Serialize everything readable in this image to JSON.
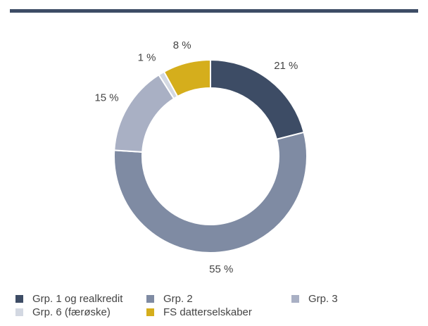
{
  "chart_data": {
    "type": "donut",
    "categories": [
      "Grp. 1 og realkredit",
      "Grp. 2",
      "Grp. 3",
      "Grp. 6 (færøske)",
      "FS datterselskaber"
    ],
    "values": [
      21,
      55,
      15,
      1,
      8
    ],
    "value_labels": [
      "21 %",
      "55 %",
      "15 %",
      "1 %",
      "8 %"
    ],
    "colors": [
      "#3d4c65",
      "#7f8ba3",
      "#a9b0c4",
      "#d3d8e2",
      "#d5ae1c"
    ],
    "legend": "bottom"
  }
}
